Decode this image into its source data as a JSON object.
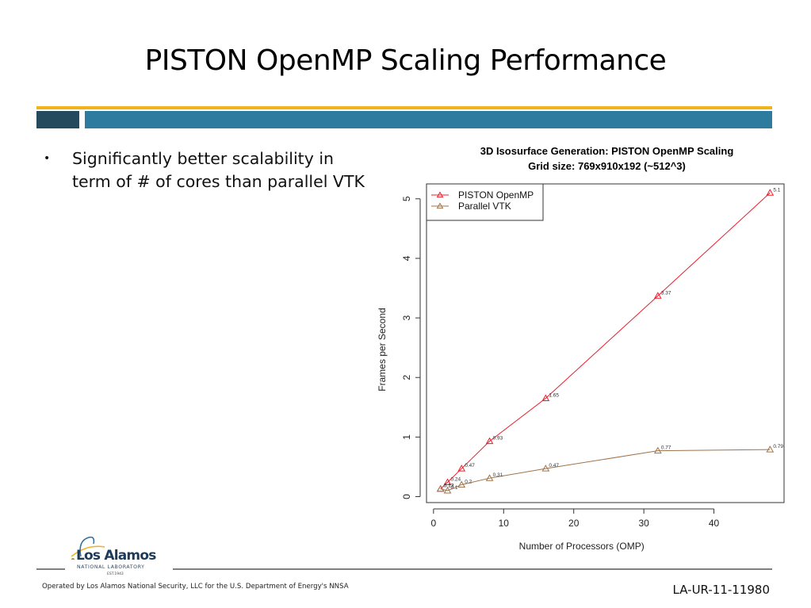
{
  "slide": {
    "title": "PISTON OpenMP Scaling Performance",
    "bullets": [
      "Significantly better scalability in term of # of cores than parallel VTK"
    ],
    "bullet_glyph": "•"
  },
  "colors": {
    "gold": "#f2b21a",
    "dark_teal": "#254a5d",
    "blue": "#2e7ba0",
    "piston": "#e8202f",
    "vtk": "#a0734a"
  },
  "footer": {
    "logo_name": "Los Alamos",
    "logo_sub": "NATIONAL LABORATORY",
    "logo_est": "EST.1943",
    "operated_by": "Operated by Los Alamos National Security, LLC for the U.S. Department of Energy's NNSA",
    "doc_id": "LA-UR-11-11980"
  },
  "chart_data": {
    "type": "line",
    "title": "3D Isosurface Generation: PISTON OpenMP Scaling",
    "subtitle": "Grid size: 769x910x192 (~512^3)",
    "xlabel": "Number of Processors (OMP)",
    "ylabel": "Frames per Second",
    "xlim": [
      -1,
      50
    ],
    "ylim": [
      -0.1,
      5.25
    ],
    "xticks": [
      0,
      10,
      20,
      30,
      40
    ],
    "yticks": [
      0,
      1,
      2,
      3,
      4,
      5
    ],
    "grid": false,
    "legend_position": "top-left",
    "marker": "open-triangle",
    "x": [
      1,
      2,
      4,
      8,
      16,
      32,
      48
    ],
    "series": [
      {
        "name": "PISTON OpenMP",
        "color": "#e8202f",
        "values": [
          0.13,
          0.24,
          0.47,
          0.93,
          1.65,
          3.37,
          5.1
        ],
        "labels": [
          "0.13",
          "0.24",
          "0.47",
          "0.93",
          "1.65",
          "3.37",
          "5.1"
        ]
      },
      {
        "name": "Parallel VTK",
        "color": "#a0734a",
        "values": [
          0.13,
          0.1,
          0.2,
          0.31,
          0.47,
          0.77,
          0.79
        ],
        "labels": [
          "0.13",
          "0.1",
          "0.2",
          "0.31",
          "0.47",
          "0.77",
          "0.79"
        ]
      }
    ]
  }
}
